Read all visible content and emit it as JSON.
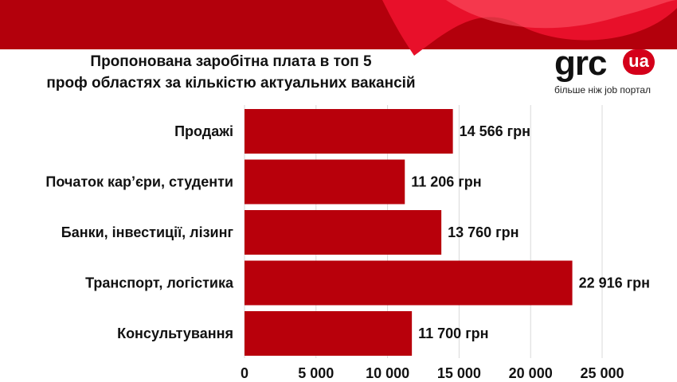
{
  "title_lines": [
    "Пропонована заробітна плата в топ 5",
    "проф областях за кількістю актуальних вакансій"
  ],
  "logo": {
    "name": "grc",
    "badge": "ua",
    "tagline": "більше ніж job портал"
  },
  "colors": {
    "bar": "#b8000b",
    "accent": "#d4001a",
    "banner": "#b3000c",
    "text": "#111111"
  },
  "chart_data": {
    "type": "bar",
    "orientation": "horizontal",
    "title": "Пропонована заробітна плата в топ 5 проф областях за кількістю актуальних вакансій",
    "categories": [
      "Продажі",
      "Початок кар’єри, студенти",
      "Банки, інвестиції, лізинг",
      "Транспорт, логістика",
      "Консультування"
    ],
    "values": [
      14566,
      11206,
      13760,
      22916,
      11700
    ],
    "data_labels": [
      "14 566 грн",
      "11 206 грн",
      "13 760 грн",
      "22 916 грн",
      "11 700 грн"
    ],
    "xlabel": "",
    "ylabel": "",
    "xlim": [
      0,
      25000
    ],
    "x_ticks": [
      0,
      5000,
      10000,
      15000,
      20000,
      25000
    ],
    "x_tick_labels": [
      "0",
      "5 000",
      "10 000",
      "15 000",
      "20 000",
      "25 000"
    ],
    "grid": true,
    "legend": "none"
  }
}
